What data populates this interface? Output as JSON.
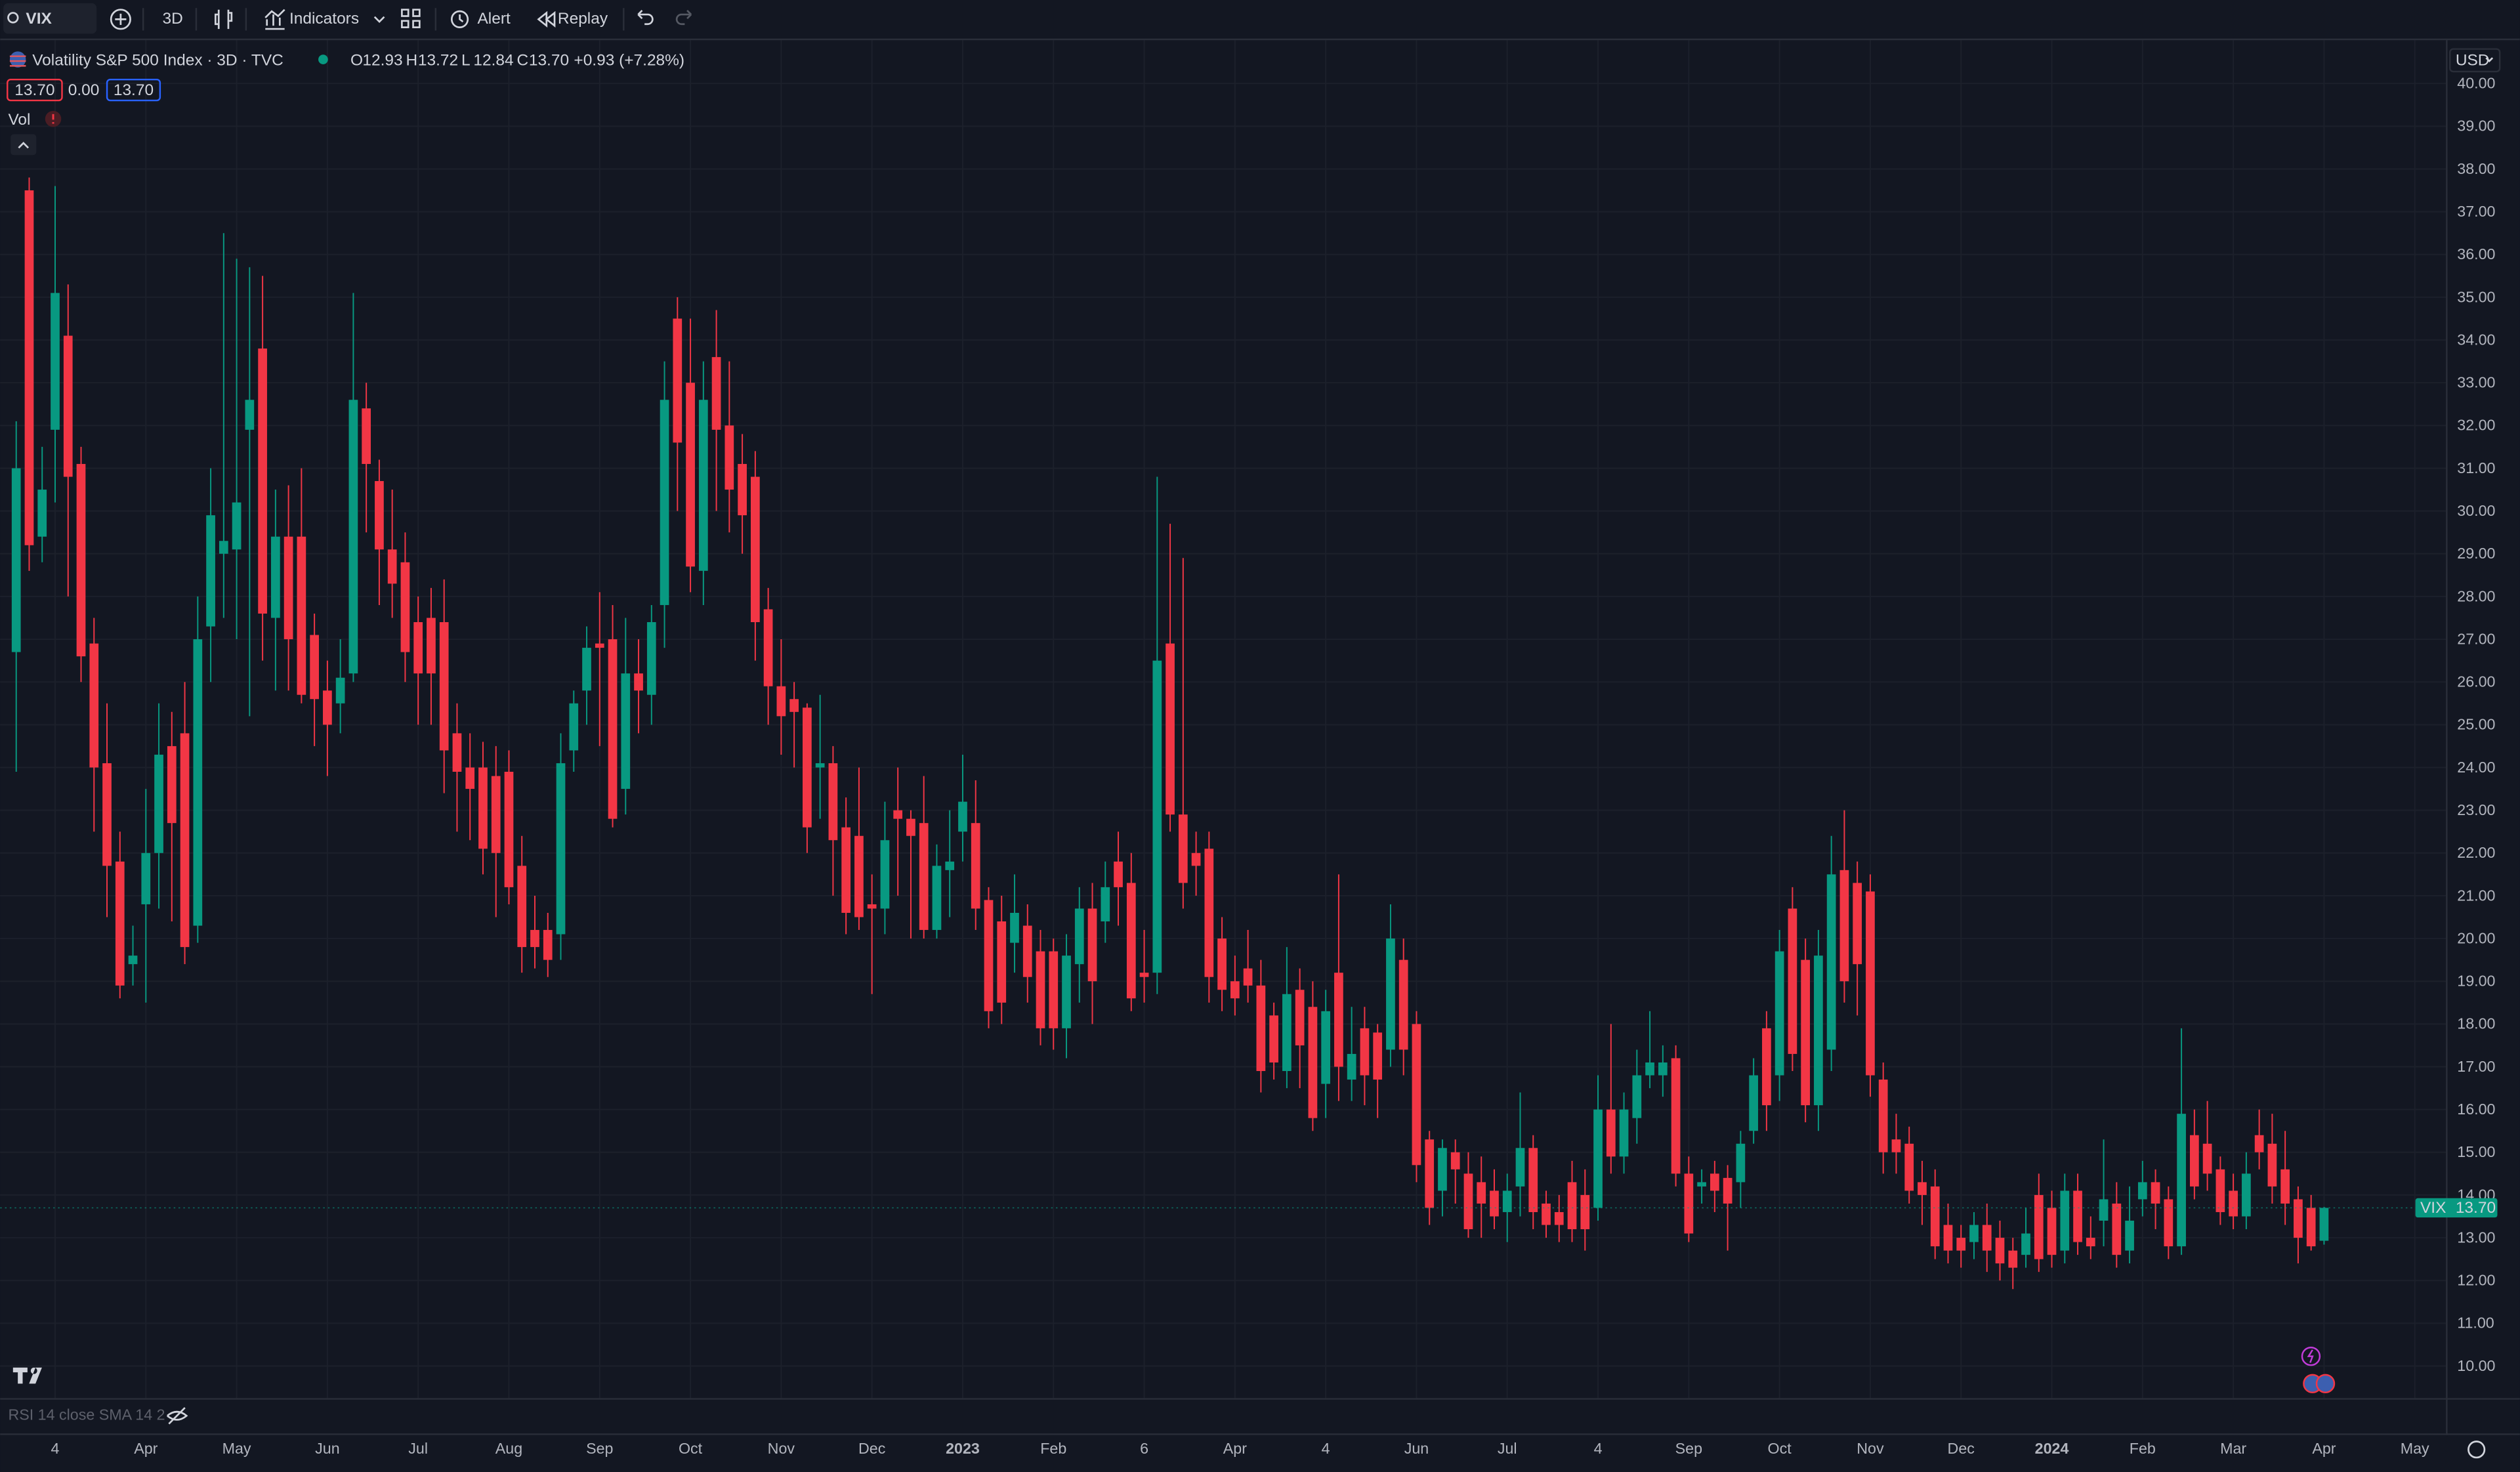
{
  "toolbar": {
    "symbol": "VIX",
    "interval": "3D",
    "indicators": "Indicators",
    "alert": "Alert",
    "replay": "Replay"
  },
  "legend": {
    "title": "Volatility S&P 500 Index · 3D · TVC",
    "ohlc": [
      {
        "label": "O",
        "value": "12.93"
      },
      {
        "label": "H",
        "value": "13.72"
      },
      {
        "label": "L",
        "value": "12.84"
      },
      {
        "label": "C",
        "value": "13.70"
      }
    ],
    "change": "+0.93 (+7.28%)",
    "sell": "13.70",
    "spread": "0.00",
    "buy": "13.70",
    "volume": "Vol"
  },
  "price_axis": {
    "currency": "USD",
    "last_symbol": "VIX",
    "last_price": "13.70"
  },
  "rsi_pane": "RSI 14 close SMA 14 2",
  "chart_data": {
    "type": "candlestick",
    "up_color": "#089981",
    "down_color": "#f23645",
    "grid": true,
    "xlim": [
      -1.24,
      187.4
    ],
    "ylim": [
      9.25,
      40.9
    ],
    "xticks": [
      {
        "value": 3,
        "label": "4"
      },
      {
        "value": 10,
        "label": "Apr"
      },
      {
        "value": 17,
        "label": "May"
      },
      {
        "value": 24,
        "label": "Jun"
      },
      {
        "value": 31,
        "label": "Jul"
      },
      {
        "value": 38,
        "label": "Aug"
      },
      {
        "value": 45,
        "label": "Sep"
      },
      {
        "value": 52,
        "label": "Oct"
      },
      {
        "value": 59,
        "label": "Nov"
      },
      {
        "value": 66,
        "label": "Dec"
      },
      {
        "value": 73,
        "label": "2023"
      },
      {
        "value": 80,
        "label": "Feb"
      },
      {
        "value": 87,
        "label": "6"
      },
      {
        "value": 94,
        "label": "Apr"
      },
      {
        "value": 101,
        "label": "4"
      },
      {
        "value": 108,
        "label": "Jun"
      },
      {
        "value": 115,
        "label": "Jul"
      },
      {
        "value": 122,
        "label": "4"
      },
      {
        "value": 129,
        "label": "Sep"
      },
      {
        "value": 136,
        "label": "Oct"
      },
      {
        "value": 143,
        "label": "Nov"
      },
      {
        "value": 150,
        "label": "Dec"
      },
      {
        "value": 157,
        "label": "2024"
      },
      {
        "value": 164,
        "label": "Feb"
      },
      {
        "value": 171,
        "label": "Mar"
      },
      {
        "value": 178,
        "label": "Apr"
      },
      {
        "value": 185,
        "label": "May"
      }
    ],
    "yticks": [
      {
        "value": 10,
        "label": "10.00"
      },
      {
        "value": 11,
        "label": "11.00"
      },
      {
        "value": 12,
        "label": "12.00"
      },
      {
        "value": 13,
        "label": "13.00"
      },
      {
        "value": 14,
        "label": "14.00"
      },
      {
        "value": 15,
        "label": "15.00"
      },
      {
        "value": 16,
        "label": "16.00"
      },
      {
        "value": 17,
        "label": "17.00"
      },
      {
        "value": 18,
        "label": "18.00"
      },
      {
        "value": 19,
        "label": "19.00"
      },
      {
        "value": 20,
        "label": "20.00"
      },
      {
        "value": 21,
        "label": "21.00"
      },
      {
        "value": 22,
        "label": "22.00"
      },
      {
        "value": 23,
        "label": "23.00"
      },
      {
        "value": 24,
        "label": "24.00"
      },
      {
        "value": 25,
        "label": "25.00"
      },
      {
        "value": 26,
        "label": "26.00"
      },
      {
        "value": 27,
        "label": "27.00"
      },
      {
        "value": 28,
        "label": "28.00"
      },
      {
        "value": 29,
        "label": "29.00"
      },
      {
        "value": 30,
        "label": "30.00"
      },
      {
        "value": 31,
        "label": "31.00"
      },
      {
        "value": 32,
        "label": "32.00"
      },
      {
        "value": 33,
        "label": "33.00"
      },
      {
        "value": 34,
        "label": "34.00"
      },
      {
        "value": 35,
        "label": "35.00"
      },
      {
        "value": 36,
        "label": "36.00"
      },
      {
        "value": 37,
        "label": "37.00"
      },
      {
        "value": 38,
        "label": "38.00"
      },
      {
        "value": 39,
        "label": "39.00"
      },
      {
        "value": 40,
        "label": "40.00"
      }
    ],
    "open": [
      26.7,
      37.5,
      29.4,
      31.9,
      34.1,
      31.1,
      26.9,
      24.1,
      21.8,
      19.4,
      20.8,
      22.0,
      24.5,
      24.8,
      20.3,
      27.3,
      29.0,
      29.1,
      31.9,
      33.8,
      27.5,
      29.4,
      29.4,
      27.1,
      25.8,
      25.5,
      26.2,
      32.4,
      30.7,
      29.1,
      28.8,
      27.4,
      27.5,
      27.4,
      24.8,
      24.0,
      24.0,
      23.8,
      23.9,
      21.7,
      20.2,
      20.2,
      20.1,
      24.4,
      25.8,
      26.9,
      27.0,
      23.5,
      26.2,
      25.7,
      27.8,
      34.5,
      33.0,
      28.6,
      33.6,
      32.0,
      31.1,
      30.8,
      27.7,
      25.9,
      25.6,
      25.4,
      24.0,
      24.1,
      22.6,
      22.4,
      20.8,
      20.7,
      23.0,
      22.8,
      22.7,
      20.2,
      21.6,
      22.5,
      22.7,
      20.9,
      20.4,
      19.9,
      20.3,
      19.7,
      19.7,
      17.9,
      19.4,
      20.7,
      20.4,
      21.8,
      21.3,
      19.2,
      19.2,
      26.9,
      22.9,
      22.0,
      22.1,
      20.0,
      19.0,
      19.3,
      18.9,
      18.2,
      16.9,
      18.8,
      18.4,
      16.6,
      19.2,
      16.7,
      17.9,
      17.8,
      17.4,
      19.5,
      18.0,
      15.3,
      14.1,
      15.0,
      14.5,
      14.3,
      14.1,
      13.6,
      14.2,
      15.1,
      13.8,
      13.6,
      14.3,
      14.0,
      13.7,
      16.0,
      14.9,
      15.8,
      16.8,
      16.8,
      17.2,
      14.5,
      14.2,
      14.5,
      14.4,
      14.3,
      15.5,
      17.9,
      16.8,
      20.7,
      19.5,
      16.1,
      17.4,
      21.6,
      21.3,
      21.1,
      16.7,
      15.3,
      15.2,
      14.3,
      14.2,
      13.3,
      13.0,
      12.9,
      13.3,
      13.0,
      12.7,
      12.6,
      14.0,
      13.7,
      12.7,
      14.1,
      13.0,
      13.4,
      13.8,
      12.7,
      13.9,
      14.3,
      13.9,
      12.8,
      15.4,
      15.2,
      14.6,
      14.1,
      13.5,
      15.4,
      15.2,
      14.6,
      13.9,
      13.7,
      12.93
    ],
    "high": [
      32.1,
      37.8,
      31.5,
      37.6,
      35.3,
      31.5,
      27.5,
      25.5,
      22.5,
      20.3,
      23.5,
      25.5,
      25.3,
      26.0,
      28.0,
      31.0,
      36.5,
      35.9,
      35.7,
      35.5,
      30.5,
      30.6,
      31.0,
      27.6,
      26.5,
      27.0,
      35.1,
      33.0,
      31.2,
      30.5,
      29.5,
      28.0,
      28.2,
      28.4,
      25.5,
      24.8,
      24.6,
      24.5,
      24.4,
      22.4,
      21.0,
      20.6,
      24.8,
      25.8,
      27.3,
      28.1,
      27.8,
      27.5,
      27.0,
      27.8,
      33.5,
      35.0,
      34.5,
      33.5,
      34.7,
      33.5,
      31.8,
      31.4,
      28.2,
      27.0,
      26.0,
      25.5,
      25.7,
      24.5,
      23.3,
      24.0,
      21.5,
      23.2,
      24.0,
      23.0,
      23.8,
      22.2,
      23.0,
      24.3,
      23.7,
      21.2,
      21.0,
      21.5,
      20.8,
      20.2,
      20.0,
      20.1,
      21.2,
      21.3,
      21.8,
      22.5,
      22.0,
      20.2,
      30.8,
      29.7,
      28.9,
      22.5,
      22.5,
      20.5,
      19.6,
      20.2,
      19.5,
      18.5,
      19.8,
      19.3,
      19.0,
      18.8,
      21.5,
      18.4,
      18.4,
      18.0,
      20.8,
      20.0,
      18.3,
      15.5,
      15.3,
      15.3,
      15.0,
      14.9,
      14.6,
      14.5,
      16.4,
      15.4,
      14.1,
      14.0,
      14.8,
      14.6,
      16.8,
      18.0,
      16.4,
      17.4,
      18.3,
      17.5,
      17.5,
      14.9,
      14.6,
      14.8,
      14.7,
      15.5,
      17.2,
      18.3,
      20.2,
      21.2,
      20.0,
      20.2,
      22.4,
      23.0,
      21.8,
      21.5,
      17.1,
      15.9,
      15.6,
      14.8,
      14.6,
      13.8,
      13.3,
      13.6,
      13.8,
      13.4,
      13.0,
      13.7,
      14.5,
      14.1,
      14.5,
      14.5,
      13.5,
      15.3,
      14.3,
      14.2,
      14.8,
      14.6,
      14.2,
      17.9,
      16.0,
      16.2,
      14.9,
      14.5,
      15.0,
      16.0,
      15.9,
      15.5,
      14.2,
      14.0,
      13.72
    ],
    "low": [
      23.9,
      28.6,
      28.8,
      30.2,
      28.0,
      26.0,
      22.5,
      20.5,
      18.6,
      18.9,
      18.5,
      20.7,
      20.4,
      19.4,
      19.9,
      26.0,
      27.5,
      27.0,
      25.2,
      26.5,
      25.8,
      25.8,
      25.5,
      24.5,
      23.8,
      24.8,
      26.0,
      29.5,
      27.8,
      27.5,
      26.0,
      25.0,
      25.0,
      23.4,
      22.5,
      22.3,
      21.5,
      20.5,
      20.8,
      19.2,
      19.3,
      19.1,
      19.5,
      23.9,
      25.0,
      24.5,
      22.6,
      22.9,
      24.8,
      25.0,
      26.8,
      30.0,
      28.1,
      27.8,
      30.0,
      29.5,
      29.0,
      26.5,
      25.0,
      24.3,
      24.0,
      22.0,
      22.8,
      21.0,
      20.1,
      20.2,
      18.7,
      20.1,
      21.0,
      20.0,
      20.0,
      20.0,
      20.5,
      21.8,
      20.2,
      17.9,
      18.0,
      19.2,
      18.5,
      17.5,
      17.4,
      17.2,
      18.5,
      18.0,
      19.9,
      20.3,
      18.3,
      18.5,
      18.7,
      22.5,
      20.7,
      21.0,
      18.5,
      18.3,
      18.2,
      18.5,
      16.4,
      16.7,
      16.5,
      16.5,
      15.5,
      15.8,
      16.2,
      16.2,
      16.1,
      15.8,
      17.0,
      16.8,
      14.3,
      13.3,
      13.5,
      13.8,
      13.0,
      13.0,
      13.2,
      12.9,
      13.5,
      13.2,
      13.0,
      12.9,
      12.9,
      12.7,
      13.4,
      14.5,
      14.5,
      15.2,
      16.5,
      16.3,
      14.2,
      12.9,
      13.8,
      13.6,
      12.7,
      13.7,
      15.2,
      15.5,
      16.2,
      16.9,
      15.7,
      15.5,
      16.9,
      18.5,
      18.2,
      16.3,
      14.5,
      14.5,
      13.8,
      13.3,
      12.5,
      12.4,
      12.3,
      12.5,
      12.2,
      12.0,
      11.8,
      12.3,
      12.2,
      12.3,
      12.4,
      12.6,
      12.5,
      12.8,
      12.3,
      12.4,
      13.5,
      13.2,
      12.5,
      12.6,
      13.9,
      14.1,
      13.3,
      13.2,
      13.2,
      14.6,
      13.8,
      13.3,
      12.4,
      12.7,
      12.84
    ],
    "close": [
      31.0,
      29.2,
      30.5,
      35.1,
      30.8,
      26.6,
      24.0,
      21.7,
      18.9,
      19.6,
      22.0,
      24.3,
      22.7,
      19.8,
      27.0,
      29.9,
      29.3,
      30.2,
      32.6,
      27.6,
      29.4,
      27.0,
      25.7,
      25.6,
      25.0,
      26.1,
      32.6,
      31.1,
      29.1,
      28.3,
      26.7,
      26.2,
      26.2,
      24.4,
      23.9,
      23.5,
      22.1,
      22.0,
      21.2,
      19.8,
      19.8,
      19.5,
      24.1,
      25.5,
      26.8,
      26.8,
      22.8,
      26.2,
      25.8,
      27.4,
      32.6,
      31.6,
      28.7,
      32.6,
      31.9,
      30.5,
      29.9,
      27.4,
      25.9,
      25.2,
      25.3,
      22.6,
      24.1,
      22.3,
      20.6,
      20.5,
      20.7,
      22.3,
      22.8,
      22.4,
      20.2,
      21.7,
      21.8,
      23.2,
      20.7,
      18.3,
      18.5,
      20.6,
      19.1,
      17.9,
      17.9,
      19.6,
      20.7,
      19.0,
      21.2,
      21.2,
      18.6,
      19.1,
      26.5,
      22.9,
      21.3,
      21.7,
      19.1,
      18.8,
      18.6,
      18.9,
      16.9,
      17.1,
      18.7,
      17.5,
      15.8,
      18.3,
      17.0,
      17.3,
      16.8,
      16.7,
      20.0,
      17.4,
      14.7,
      13.7,
      15.1,
      14.6,
      13.2,
      13.8,
      13.5,
      14.1,
      15.1,
      13.6,
      13.3,
      13.3,
      13.2,
      13.2,
      16.0,
      14.9,
      16.0,
      16.8,
      17.1,
      17.1,
      14.5,
      13.1,
      14.3,
      14.1,
      13.8,
      15.2,
      16.8,
      16.1,
      19.7,
      17.3,
      16.1,
      19.6,
      21.5,
      19.0,
      19.4,
      16.8,
      15.0,
      15.0,
      14.1,
      14.0,
      12.8,
      12.7,
      12.7,
      13.3,
      12.7,
      12.4,
      12.3,
      13.1,
      12.5,
      12.6,
      14.1,
      12.9,
      12.8,
      13.9,
      12.6,
      13.4,
      14.3,
      13.8,
      12.8,
      15.9,
      14.2,
      14.5,
      13.6,
      13.5,
      14.5,
      15.0,
      14.2,
      13.8,
      13.0,
      12.8,
      13.7
    ]
  }
}
